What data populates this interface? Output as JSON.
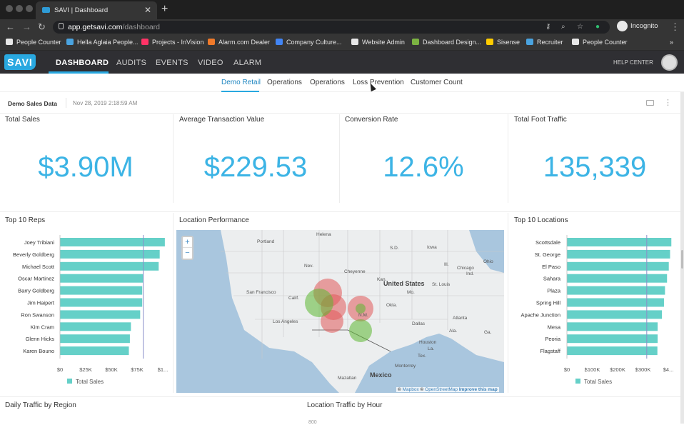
{
  "browser": {
    "tab_title": "SAVI | Dashboard",
    "close_glyph": "✕",
    "new_tab_glyph": "+",
    "url_host": "app.getsavi.com",
    "url_path": "/dashboard",
    "profile_label": "Incognito",
    "bookmarks": [
      {
        "label": "People Counter",
        "color": "#e8e8e8"
      },
      {
        "label": "Hella Aglaia People...",
        "color": "#4aa3df"
      },
      {
        "label": "Projects - InVision",
        "color": "#ff3366"
      },
      {
        "label": "Alarm.com Dealer",
        "color": "#f07a2a"
      },
      {
        "label": "Company Culture...",
        "color": "#4285f4"
      },
      {
        "label": "Website Admin",
        "color": "#e8e8e8"
      },
      {
        "label": "Dashboard Design...",
        "color": "#7cb342"
      },
      {
        "label": "Sisense",
        "color": "#ffcc00"
      },
      {
        "label": "Recruiter",
        "color": "#4aa3df"
      },
      {
        "label": "People Counter",
        "color": "#e8e8e8"
      }
    ],
    "more_glyph": "»"
  },
  "app": {
    "logo": "SAVI",
    "nav": [
      "DASHBOARD",
      "AUDITS",
      "EVENTS",
      "VIDEO",
      "ALARM"
    ],
    "active_nav": "DASHBOARD",
    "help": "HELP CENTER",
    "accent": "#29a8e0"
  },
  "subtabs": [
    "Demo Retail",
    "Operations",
    "Operations",
    "Loss Prevention",
    "Customer Count"
  ],
  "active_subtab": "Demo Retail",
  "dashboard": {
    "name": "Demo Sales Data",
    "date": "Nov 28, 2019 2:18:59 AM",
    "kebab": "⋮"
  },
  "kpis": [
    {
      "title": "Total Sales",
      "value": "$3.90M"
    },
    {
      "title": "Average Transaction Value",
      "value": "$229.53"
    },
    {
      "title": "Conversion Rate",
      "value": "12.6%"
    },
    {
      "title": "Total Foot Traffic",
      "value": "135,339"
    }
  ],
  "sections": {
    "reps": "Top 10 Reps",
    "map": "Location Performance",
    "locations": "Top 10 Locations",
    "daily": "Daily Traffic by Region",
    "hourly": "Location Traffic by Hour",
    "hourly_first_tick": "800"
  },
  "map": {
    "zoom_in": "+",
    "zoom_out": "−",
    "labels": [
      "Helena",
      "Portland",
      "Cheyenne",
      "United States",
      "St. Louis",
      "Chicago",
      "San Francisco",
      "Los Angeles",
      "Dallas",
      "Atlanta",
      "Houston",
      "Mexico",
      "Monterrey",
      "Mazatlan",
      "Nev.",
      "Calif.",
      "N.M.",
      "S.D.",
      "Iowa",
      "Ill.",
      "Ind.",
      "Ohio",
      "Kan.",
      "Mo.",
      "Okla.",
      "Ala.",
      "Ga.",
      "Tex.",
      "La."
    ],
    "attribution_prefix": "© ",
    "attribution_mapbox": "Mapbox",
    "attribution_sep": " © ",
    "attribution_osm": "OpenStreetMap",
    "attribution_improve": "Improve this map",
    "circles": [
      {
        "color": "#e15a5a"
      },
      {
        "color": "#e15a5a"
      },
      {
        "color": "#e15a5a"
      },
      {
        "color": "#e15a5a"
      },
      {
        "color": "#5cb832"
      },
      {
        "color": "#5cb832"
      },
      {
        "color": "#5cb832"
      }
    ]
  },
  "chart_data": [
    {
      "type": "bar",
      "orientation": "horizontal",
      "title": "Top 10 Reps",
      "categories": [
        "Joey Tribiani",
        "Beverly Goldberg",
        "Michael Scott",
        "Oscar Martinez",
        "Barry Goldberg",
        "Jim Haipert",
        "Ron Swanson",
        "Kim Cram",
        "Glenn Hicks",
        "Karen Bouno"
      ],
      "values": [
        102000,
        97000,
        96000,
        81000,
        80000,
        80000,
        78000,
        69000,
        68000,
        67000
      ],
      "xticks": [
        "$0",
        "$25K",
        "$50K",
        "$75K",
        "$1..."
      ],
      "xlim": [
        0,
        100000
      ],
      "reference_line": 81000,
      "series": [
        {
          "name": "Total Sales",
          "color": "#65d0c8"
        }
      ],
      "legend": "bottom"
    },
    {
      "type": "bar",
      "orientation": "horizontal",
      "title": "Top 10 Locations",
      "categories": [
        "Scottsdale",
        "St. George",
        "El Paso",
        "Sahara",
        "Plaza",
        "Spring Hill",
        "Apache Junction",
        "Mesa",
        "Peoria",
        "Flagstaff"
      ],
      "values": [
        412000,
        407000,
        402000,
        395000,
        387000,
        383000,
        375000,
        358000,
        358000,
        357000
      ],
      "xticks": [
        "$0",
        "$100K",
        "$200K",
        "$300K",
        "$4..."
      ],
      "xlim": [
        0,
        400000
      ],
      "reference_line": 315000,
      "series": [
        {
          "name": "Total Sales",
          "color": "#65d0c8"
        }
      ],
      "legend": "bottom"
    }
  ]
}
